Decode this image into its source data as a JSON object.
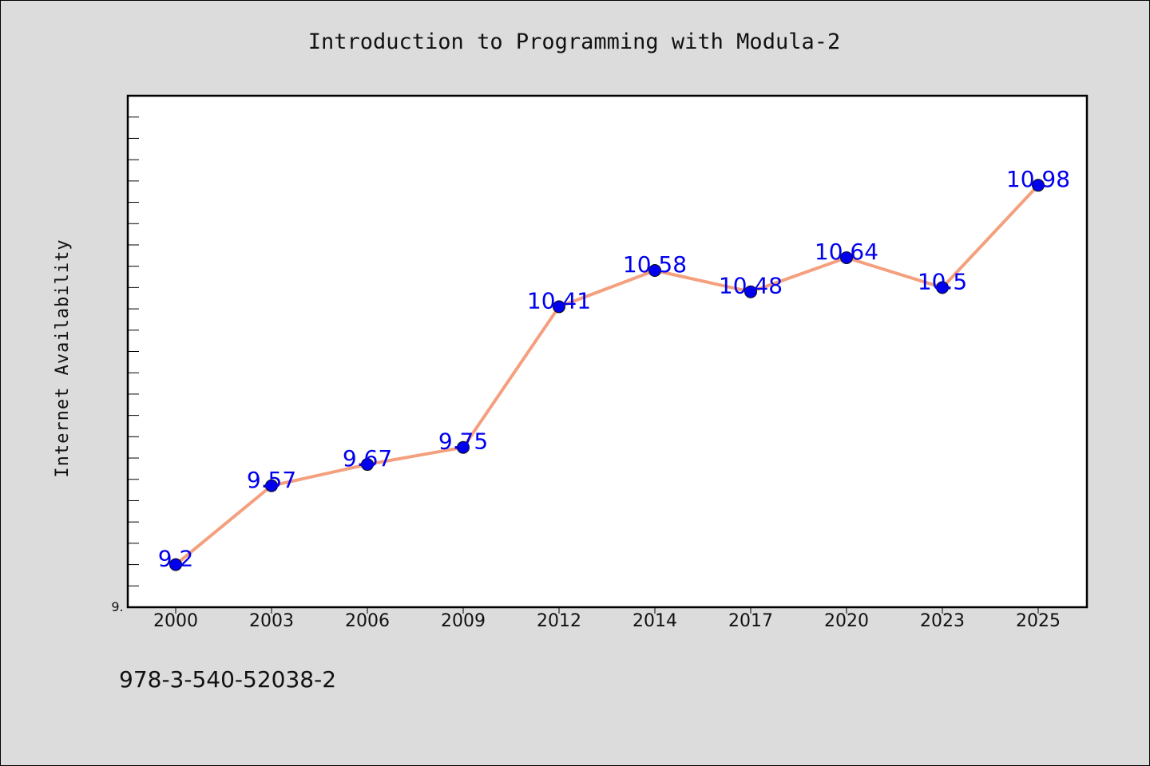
{
  "chart_data": {
    "type": "line",
    "title": "Introduction to Programming with Modula-2",
    "xlabel": "",
    "ylabel": "Internet Availability",
    "categories": [
      "2000",
      "2003",
      "2006",
      "2009",
      "2012",
      "2014",
      "2017",
      "2020",
      "2023",
      "2025"
    ],
    "series": [
      {
        "values": [
          9.2,
          9.57,
          9.67,
          9.75,
          10.41,
          10.58,
          10.48,
          10.64,
          10.5,
          10.98
        ],
        "data_labels": [
          "9.2",
          "9.57",
          "9.67",
          "9.75",
          "10.41",
          "10.58",
          "10.48",
          "10.64",
          "10.5",
          "10.98"
        ]
      }
    ],
    "ylim": [
      9.0,
      11.4
    ],
    "y_tick_labels": [
      "9."
    ],
    "grid": false,
    "legend": "none",
    "colors": {
      "line": "#f4a07e",
      "marker": "#0000ee",
      "data_label": "#0000ee",
      "background": "#dcdcdc",
      "plot_background": "#ffffff"
    }
  },
  "footer": {
    "isbn": "978-3-540-52038-2"
  }
}
